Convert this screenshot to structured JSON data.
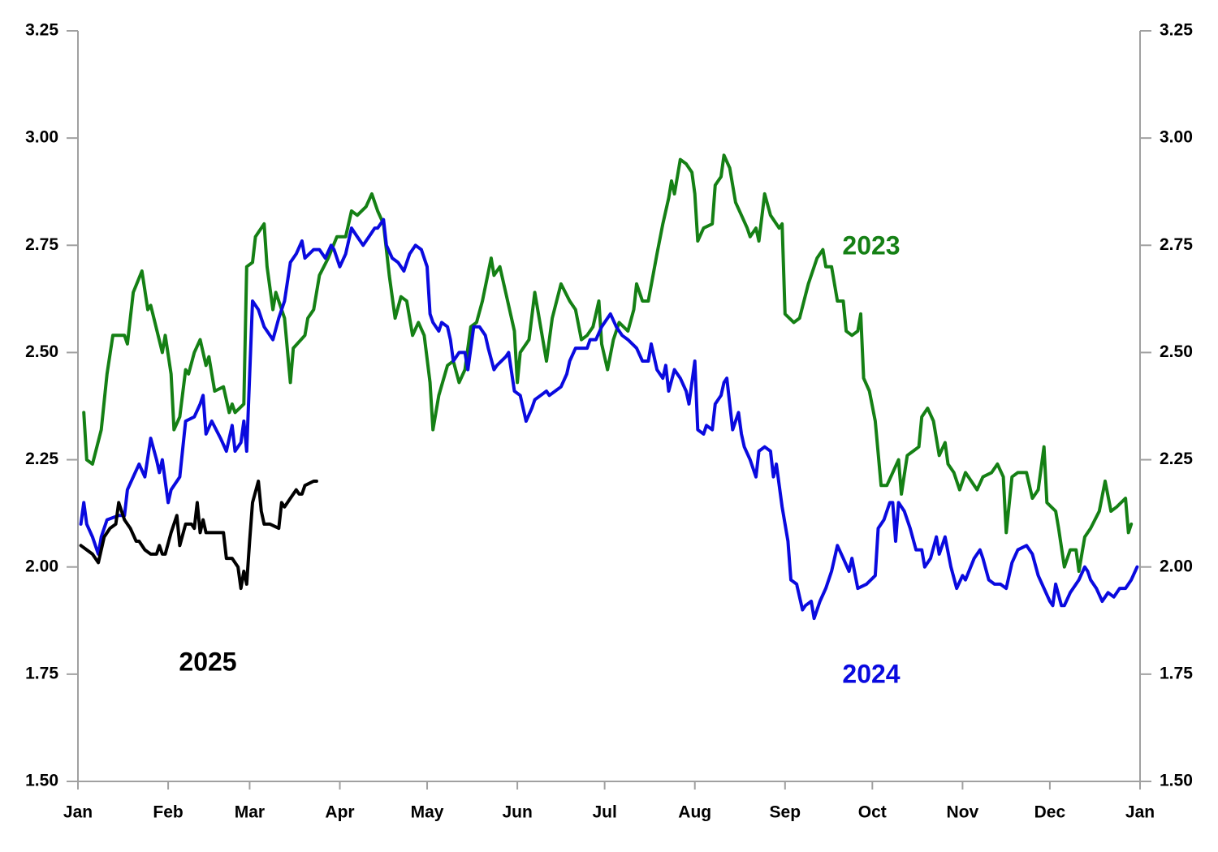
{
  "chart_data": {
    "type": "line",
    "xlim": [
      0,
      365
    ],
    "xticks": [
      {
        "value": 0,
        "label": "Jan"
      },
      {
        "value": 31,
        "label": "Feb"
      },
      {
        "value": 59,
        "label": "Mar"
      },
      {
        "value": 90,
        "label": "Apr"
      },
      {
        "value": 120,
        "label": "May"
      },
      {
        "value": 151,
        "label": "Jun"
      },
      {
        "value": 181,
        "label": "Jul"
      },
      {
        "value": 212,
        "label": "Aug"
      },
      {
        "value": 243,
        "label": "Sep"
      },
      {
        "value": 273,
        "label": "Oct"
      },
      {
        "value": 304,
        "label": "Nov"
      },
      {
        "value": 334,
        "label": "Dec"
      },
      {
        "value": 365,
        "label": "Jan"
      }
    ],
    "ylim": [
      1.5,
      3.25
    ],
    "yticks": [
      {
        "value": 1.5,
        "label": "1.50"
      },
      1.75,
      {
        "value": 2,
        "label": "2.00"
      },
      2.25,
      {
        "value": 2.5,
        "label": "2.50"
      },
      2.75,
      {
        "value": 3,
        "label": "3.00"
      },
      3.25
    ],
    "y2lim": [
      1.5,
      3.25
    ],
    "y2ticks": [
      {
        "value": 1.5,
        "label": "1.50"
      },
      1.75,
      {
        "value": 2,
        "label": "2.00"
      },
      2.25,
      {
        "value": 2.5,
        "label": "2.50"
      },
      2.75,
      {
        "value": 3,
        "label": "3.00"
      },
      3.25
    ],
    "grid": false,
    "series": [
      {
        "name": "2023",
        "color": "#158015",
        "x": [
          2,
          3,
          5,
          8,
          10,
          12,
          16,
          17,
          19,
          22,
          24,
          25,
          29,
          30,
          32,
          33,
          35,
          37,
          38,
          40,
          42,
          44,
          45,
          47,
          50,
          52,
          53,
          54,
          57,
          58,
          60,
          61,
          64,
          65,
          67,
          68,
          71,
          73,
          74,
          78,
          79,
          81,
          83,
          86,
          89,
          92,
          94,
          96,
          99,
          101,
          103,
          105,
          107,
          109,
          111,
          113,
          115,
          117,
          119,
          121,
          122,
          124,
          127,
          129,
          131,
          133,
          135,
          137,
          139,
          142,
          143,
          145,
          147,
          150,
          151,
          152,
          155,
          157,
          159,
          161,
          163,
          166,
          169,
          171,
          173,
          175,
          177,
          179,
          180,
          182,
          184,
          186,
          189,
          191,
          192,
          194,
          196,
          199,
          201,
          203,
          204,
          205,
          207,
          209,
          211,
          212,
          213,
          215,
          218,
          219,
          221,
          222,
          224,
          226,
          228,
          230,
          231,
          233,
          234,
          236,
          238,
          241,
          242,
          243,
          246,
          248,
          251,
          254,
          256,
          257,
          259,
          261,
          263,
          264,
          266,
          268,
          269,
          270,
          272,
          274,
          276,
          278,
          280,
          282,
          283,
          285,
          287,
          289,
          290,
          292,
          294,
          296,
          298,
          299,
          301,
          303,
          305,
          307,
          309,
          311,
          314,
          316,
          318,
          319,
          321,
          323,
          326,
          328,
          330,
          332,
          333,
          336,
          337,
          339,
          341,
          343,
          344,
          346,
          348,
          351,
          353,
          355,
          357,
          360,
          361,
          362
        ],
        "values": [
          2.36,
          2.25,
          2.24,
          2.32,
          2.45,
          2.54,
          2.54,
          2.52,
          2.64,
          2.69,
          2.6,
          2.61,
          2.5,
          2.54,
          2.45,
          2.32,
          2.35,
          2.46,
          2.45,
          2.5,
          2.53,
          2.47,
          2.49,
          2.41,
          2.42,
          2.36,
          2.38,
          2.36,
          2.38,
          2.7,
          2.71,
          2.77,
          2.8,
          2.7,
          2.6,
          2.64,
          2.58,
          2.43,
          2.51,
          2.54,
          2.58,
          2.6,
          2.68,
          2.72,
          2.77,
          2.77,
          2.83,
          2.82,
          2.84,
          2.87,
          2.83,
          2.8,
          2.68,
          2.58,
          2.63,
          2.62,
          2.54,
          2.57,
          2.54,
          2.43,
          2.32,
          2.4,
          2.47,
          2.48,
          2.43,
          2.46,
          2.56,
          2.57,
          2.62,
          2.72,
          2.68,
          2.7,
          2.64,
          2.55,
          2.43,
          2.5,
          2.53,
          2.64,
          2.56,
          2.48,
          2.58,
          2.66,
          2.62,
          2.6,
          2.53,
          2.54,
          2.56,
          2.62,
          2.52,
          2.46,
          2.53,
          2.57,
          2.55,
          2.6,
          2.66,
          2.62,
          2.62,
          2.73,
          2.8,
          2.86,
          2.9,
          2.87,
          2.95,
          2.94,
          2.92,
          2.87,
          2.76,
          2.79,
          2.8,
          2.89,
          2.91,
          2.96,
          2.93,
          2.85,
          2.82,
          2.79,
          2.77,
          2.79,
          2.76,
          2.87,
          2.82,
          2.79,
          2.8,
          2.59,
          2.57,
          2.58,
          2.66,
          2.72,
          2.74,
          2.7,
          2.7,
          2.62,
          2.62,
          2.55,
          2.54,
          2.55,
          2.59,
          2.44,
          2.41,
          2.34,
          2.19,
          2.19,
          2.22,
          2.25,
          2.17,
          2.26,
          2.27,
          2.28,
          2.35,
          2.37,
          2.34,
          2.26,
          2.29,
          2.24,
          2.22,
          2.18,
          2.22,
          2.2,
          2.18,
          2.21,
          2.22,
          2.24,
          2.21,
          2.08,
          2.21,
          2.22,
          2.22,
          2.16,
          2.18,
          2.28,
          2.15,
          2.13,
          2.09,
          2.0,
          2.04,
          2.04,
          1.99,
          2.07,
          2.09,
          2.13,
          2.2,
          2.13,
          2.14,
          2.16,
          2.08,
          2.1
        ]
      },
      {
        "name": "2024",
        "color": "#0a0adf",
        "x": [
          1,
          2,
          3,
          5,
          7,
          8,
          10,
          14,
          16,
          17,
          19,
          21,
          23,
          25,
          27,
          28,
          29,
          31,
          32,
          35,
          37,
          40,
          42,
          43,
          44,
          46,
          49,
          51,
          53,
          54,
          56,
          57,
          58,
          60,
          62,
          64,
          65,
          67,
          69,
          71,
          73,
          75,
          77,
          78,
          81,
          83,
          85,
          87,
          88,
          90,
          92,
          94,
          96,
          98,
          100,
          102,
          103,
          105,
          106,
          108,
          110,
          112,
          114,
          116,
          118,
          120,
          121,
          122,
          124,
          125,
          127,
          128,
          129,
          131,
          133,
          134,
          136,
          138,
          140,
          141,
          143,
          144,
          147,
          148,
          150,
          152,
          154,
          156,
          157,
          159,
          161,
          162,
          164,
          166,
          168,
          169,
          171,
          175,
          176,
          178,
          180,
          181,
          183,
          185,
          187,
          189,
          192,
          194,
          196,
          197,
          199,
          201,
          202,
          203,
          205,
          207,
          209,
          210,
          212,
          213,
          215,
          216,
          218,
          219,
          221,
          222,
          223,
          225,
          227,
          228,
          229,
          231,
          233,
          234,
          236,
          238,
          239,
          240,
          242,
          244,
          245,
          247,
          249,
          250,
          252,
          253,
          255,
          257,
          259,
          261,
          263,
          265,
          266,
          268,
          271,
          274,
          275,
          277,
          279,
          280,
          281,
          282,
          284,
          286,
          288,
          290,
          291,
          293,
          295,
          296,
          298,
          300,
          302,
          304,
          305,
          308,
          310,
          311,
          313,
          315,
          317,
          319,
          321,
          323,
          326,
          328,
          330,
          332,
          334,
          335,
          336,
          338,
          339,
          341,
          344,
          346,
          347,
          348,
          350,
          352,
          354,
          356,
          358,
          360,
          362,
          364
        ],
        "values": [
          2.1,
          2.15,
          2.1,
          2.07,
          2.03,
          2.07,
          2.11,
          2.12,
          2.12,
          2.18,
          2.21,
          2.24,
          2.21,
          2.3,
          2.25,
          2.22,
          2.25,
          2.15,
          2.18,
          2.21,
          2.34,
          2.35,
          2.38,
          2.4,
          2.31,
          2.34,
          2.3,
          2.27,
          2.33,
          2.27,
          2.29,
          2.34,
          2.27,
          2.62,
          2.6,
          2.56,
          2.55,
          2.53,
          2.58,
          2.62,
          2.71,
          2.73,
          2.76,
          2.72,
          2.74,
          2.74,
          2.72,
          2.75,
          2.74,
          2.7,
          2.73,
          2.79,
          2.77,
          2.75,
          2.77,
          2.79,
          2.79,
          2.81,
          2.75,
          2.72,
          2.71,
          2.69,
          2.73,
          2.75,
          2.74,
          2.7,
          2.59,
          2.57,
          2.55,
          2.57,
          2.56,
          2.53,
          2.48,
          2.5,
          2.5,
          2.46,
          2.56,
          2.56,
          2.54,
          2.51,
          2.46,
          2.47,
          2.49,
          2.5,
          2.41,
          2.4,
          2.34,
          2.37,
          2.39,
          2.4,
          2.41,
          2.4,
          2.41,
          2.42,
          2.45,
          2.48,
          2.51,
          2.51,
          2.53,
          2.53,
          2.56,
          2.57,
          2.59,
          2.56,
          2.54,
          2.53,
          2.51,
          2.48,
          2.48,
          2.52,
          2.46,
          2.44,
          2.47,
          2.41,
          2.46,
          2.44,
          2.41,
          2.38,
          2.48,
          2.32,
          2.31,
          2.33,
          2.32,
          2.38,
          2.4,
          2.43,
          2.44,
          2.32,
          2.36,
          2.31,
          2.28,
          2.25,
          2.21,
          2.27,
          2.28,
          2.27,
          2.21,
          2.24,
          2.14,
          2.06,
          1.97,
          1.96,
          1.9,
          1.91,
          1.92,
          1.88,
          1.92,
          1.95,
          1.99,
          2.05,
          2.02,
          1.99,
          2.02,
          1.95,
          1.96,
          1.98,
          2.09,
          2.11,
          2.15,
          2.15,
          2.06,
          2.15,
          2.13,
          2.09,
          2.04,
          2.04,
          2.0,
          2.02,
          2.07,
          2.03,
          2.07,
          2.0,
          1.95,
          1.98,
          1.97,
          2.02,
          2.04,
          2.02,
          1.97,
          1.96,
          1.96,
          1.95,
          2.01,
          2.04,
          2.05,
          2.03,
          1.98,
          1.95,
          1.92,
          1.91,
          1.96,
          1.91,
          1.91,
          1.94,
          1.97,
          2.0,
          1.99,
          1.97,
          1.95,
          1.92,
          1.94,
          1.93,
          1.95,
          1.95,
          1.97,
          2.0
        ]
      },
      {
        "name": "2025",
        "color": "#000000",
        "x": [
          1,
          3,
          5,
          6,
          7,
          8,
          9,
          11,
          13,
          14,
          16,
          18,
          20,
          21,
          23,
          25,
          27,
          28,
          29,
          30,
          32,
          34,
          35,
          37,
          39,
          40,
          41,
          42,
          43,
          44,
          47,
          50,
          51,
          53,
          55,
          56,
          57,
          58,
          59,
          60,
          62,
          63,
          64,
          66,
          69,
          70,
          71,
          73,
          75,
          76,
          77,
          78,
          81,
          82
        ],
        "values": [
          2.05,
          2.04,
          2.03,
          2.02,
          2.01,
          2.04,
          2.07,
          2.09,
          2.1,
          2.15,
          2.11,
          2.09,
          2.06,
          2.06,
          2.04,
          2.03,
          2.03,
          2.05,
          2.03,
          2.03,
          2.08,
          2.12,
          2.05,
          2.1,
          2.1,
          2.09,
          2.15,
          2.08,
          2.11,
          2.08,
          2.08,
          2.08,
          2.02,
          2.02,
          2.0,
          1.95,
          1.99,
          1.96,
          2.06,
          2.15,
          2.2,
          2.13,
          2.1,
          2.1,
          2.09,
          2.15,
          2.14,
          2.16,
          2.18,
          2.17,
          2.17,
          2.19,
          2.2,
          2.2
        ]
      }
    ]
  }
}
